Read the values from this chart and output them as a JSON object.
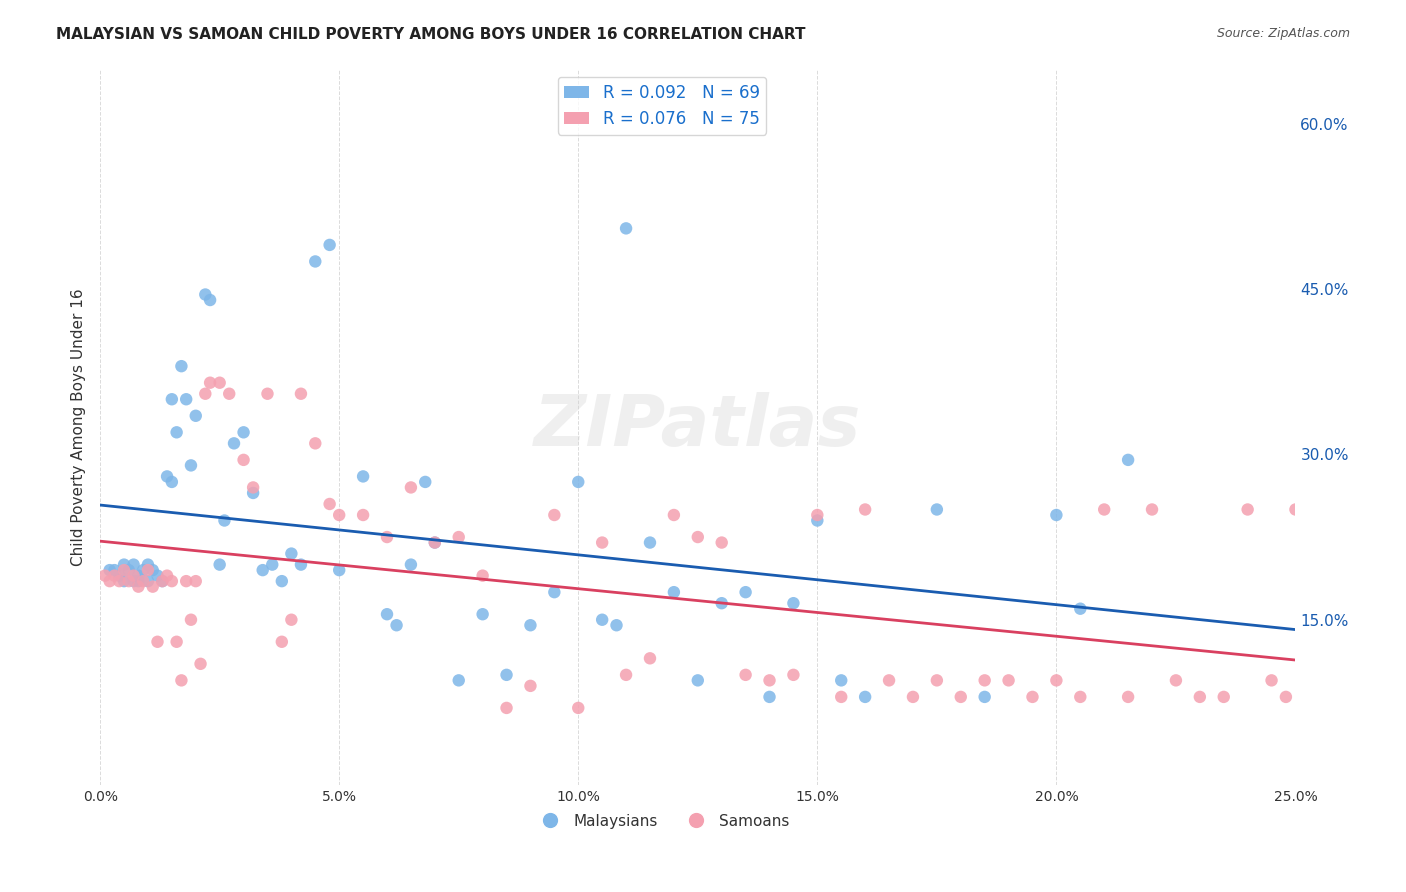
{
  "title": "MALAYSIAN VS SAMOAN CHILD POVERTY AMONG BOYS UNDER 16 CORRELATION CHART",
  "source": "Source: ZipAtlas.com",
  "ylabel": "Child Poverty Among Boys Under 16",
  "xlabel_ticks": [
    "0.0%",
    "5.0%",
    "10.0%",
    "15.0%",
    "20.0%",
    "25.0%"
  ],
  "xlabel_vals": [
    0.0,
    0.05,
    0.1,
    0.15,
    0.2,
    0.25
  ],
  "ytick_labels": [
    "15.0%",
    "30.0%",
    "45.0%",
    "60.0%"
  ],
  "ytick_vals": [
    0.15,
    0.3,
    0.45,
    0.6
  ],
  "xlim": [
    0.0,
    0.25
  ],
  "ylim": [
    0.0,
    0.65
  ],
  "legend_label1": "R = 0.092   N = 69",
  "legend_label2": "R = 0.076   N = 75",
  "R1": 0.092,
  "N1": 69,
  "R2": 0.076,
  "N2": 75,
  "color_blue": "#7EB6E8",
  "color_pink": "#F4A0B0",
  "line_color_blue": "#1A5CB0",
  "line_color_pink": "#D94060",
  "legend_text_color": "#1A6FCC",
  "background_color": "#FFFFFF",
  "grid_color": "#CCCCCC",
  "watermark": "ZIPatlas",
  "malaysian_x": [
    0.002,
    0.003,
    0.004,
    0.005,
    0.005,
    0.006,
    0.007,
    0.007,
    0.008,
    0.008,
    0.009,
    0.01,
    0.01,
    0.011,
    0.012,
    0.013,
    0.014,
    0.015,
    0.015,
    0.016,
    0.017,
    0.018,
    0.019,
    0.02,
    0.022,
    0.023,
    0.025,
    0.026,
    0.028,
    0.03,
    0.032,
    0.034,
    0.036,
    0.038,
    0.04,
    0.042,
    0.045,
    0.048,
    0.05,
    0.055,
    0.06,
    0.062,
    0.065,
    0.068,
    0.07,
    0.075,
    0.08,
    0.085,
    0.09,
    0.095,
    0.1,
    0.105,
    0.108,
    0.11,
    0.115,
    0.12,
    0.125,
    0.13,
    0.135,
    0.14,
    0.145,
    0.15,
    0.155,
    0.16,
    0.175,
    0.185,
    0.2,
    0.205,
    0.215
  ],
  "malaysian_y": [
    0.195,
    0.195,
    0.19,
    0.185,
    0.2,
    0.195,
    0.185,
    0.2,
    0.19,
    0.185,
    0.195,
    0.2,
    0.185,
    0.195,
    0.19,
    0.185,
    0.28,
    0.275,
    0.35,
    0.32,
    0.38,
    0.35,
    0.29,
    0.335,
    0.445,
    0.44,
    0.2,
    0.24,
    0.31,
    0.32,
    0.265,
    0.195,
    0.2,
    0.185,
    0.21,
    0.2,
    0.475,
    0.49,
    0.195,
    0.28,
    0.155,
    0.145,
    0.2,
    0.275,
    0.22,
    0.095,
    0.155,
    0.1,
    0.145,
    0.175,
    0.275,
    0.15,
    0.145,
    0.505,
    0.22,
    0.175,
    0.095,
    0.165,
    0.175,
    0.08,
    0.165,
    0.24,
    0.095,
    0.08,
    0.25,
    0.08,
    0.245,
    0.16,
    0.295
  ],
  "samoan_x": [
    0.001,
    0.002,
    0.003,
    0.004,
    0.005,
    0.006,
    0.007,
    0.008,
    0.009,
    0.01,
    0.011,
    0.012,
    0.013,
    0.014,
    0.015,
    0.016,
    0.017,
    0.018,
    0.019,
    0.02,
    0.021,
    0.022,
    0.023,
    0.025,
    0.027,
    0.03,
    0.032,
    0.035,
    0.038,
    0.04,
    0.042,
    0.045,
    0.048,
    0.05,
    0.055,
    0.06,
    0.065,
    0.07,
    0.075,
    0.08,
    0.085,
    0.09,
    0.095,
    0.1,
    0.105,
    0.11,
    0.115,
    0.12,
    0.125,
    0.13,
    0.135,
    0.14,
    0.145,
    0.15,
    0.155,
    0.16,
    0.165,
    0.17,
    0.175,
    0.18,
    0.185,
    0.19,
    0.195,
    0.2,
    0.205,
    0.21,
    0.215,
    0.22,
    0.225,
    0.23,
    0.235,
    0.24,
    0.245,
    0.248,
    0.25
  ],
  "samoan_y": [
    0.19,
    0.185,
    0.19,
    0.185,
    0.195,
    0.185,
    0.19,
    0.18,
    0.185,
    0.195,
    0.18,
    0.13,
    0.185,
    0.19,
    0.185,
    0.13,
    0.095,
    0.185,
    0.15,
    0.185,
    0.11,
    0.355,
    0.365,
    0.365,
    0.355,
    0.295,
    0.27,
    0.355,
    0.13,
    0.15,
    0.355,
    0.31,
    0.255,
    0.245,
    0.245,
    0.225,
    0.27,
    0.22,
    0.225,
    0.19,
    0.07,
    0.09,
    0.245,
    0.07,
    0.22,
    0.1,
    0.115,
    0.245,
    0.225,
    0.22,
    0.1,
    0.095,
    0.1,
    0.245,
    0.08,
    0.25,
    0.095,
    0.08,
    0.095,
    0.08,
    0.095,
    0.095,
    0.08,
    0.095,
    0.08,
    0.25,
    0.08,
    0.25,
    0.095,
    0.08,
    0.08,
    0.25,
    0.095,
    0.08,
    0.25
  ]
}
